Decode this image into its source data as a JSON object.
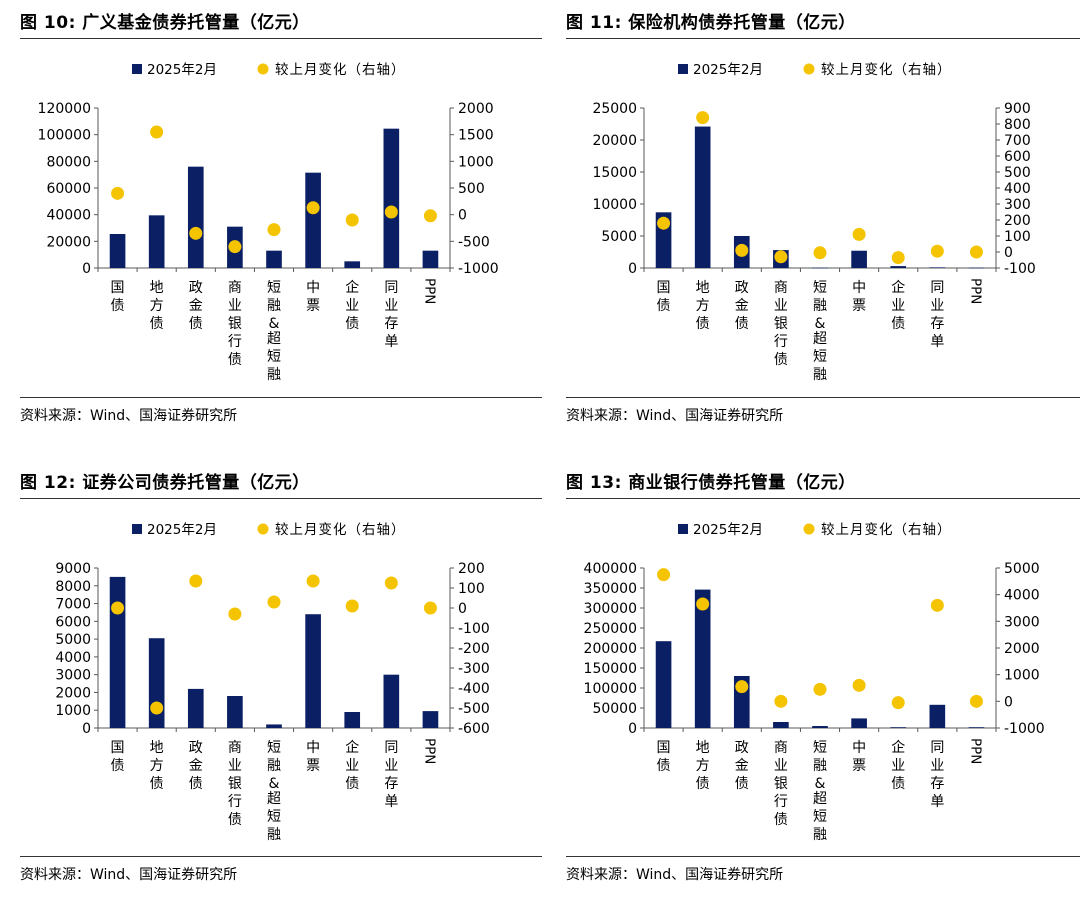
{
  "colors": {
    "bar": "#0b1f64",
    "dot": "#f5c400",
    "axis": "#595959"
  },
  "legend": {
    "bar_label": "2025年2月",
    "dot_label": "较上月变化（右轴）"
  },
  "source_text": "资料来源：Wind、国海证券研究所",
  "charts": [
    {
      "title_label": "图 10:",
      "title_text": "广义基金债券托管量（亿元）",
      "chart_data": {
        "type": "bar+scatter",
        "categories": [
          "国债",
          "地方债",
          "政金债",
          "商业银行债",
          "短融&超短融",
          "中票",
          "企业债",
          "同业存单",
          "PPN"
        ],
        "series": [
          {
            "name": "2025年2月",
            "axis": "left",
            "values": [
              25500,
              39500,
              76000,
              31000,
              13000,
              71500,
              5000,
              104500,
              13000
            ]
          },
          {
            "name": "较上月变化（右轴）",
            "axis": "right",
            "values": [
              400,
              1550,
              -350,
              -600,
              -280,
              130,
              -100,
              50,
              -20
            ]
          }
        ],
        "left_ticks": [
          0,
          20000,
          40000,
          60000,
          80000,
          100000,
          120000
        ],
        "right_ticks": [
          -1000,
          -500,
          0,
          500,
          1000,
          1500,
          2000
        ],
        "ylim": [
          0,
          120000
        ],
        "y2lim": [
          -1000,
          2000
        ]
      }
    },
    {
      "title_label": "图 11:",
      "title_text": "保险机构债券托管量（亿元）",
      "chart_data": {
        "type": "bar+scatter",
        "categories": [
          "国债",
          "地方债",
          "政金债",
          "商业银行债",
          "短融&超短融",
          "中票",
          "企业债",
          "同业存单",
          "PPN"
        ],
        "series": [
          {
            "name": "2025年2月",
            "axis": "left",
            "values": [
              8700,
              22100,
              5000,
              2800,
              50,
              2700,
              300,
              100,
              50
            ]
          },
          {
            "name": "较上月变化（右轴）",
            "axis": "right",
            "values": [
              180,
              840,
              10,
              -30,
              -5,
              110,
              -35,
              5,
              0
            ]
          }
        ],
        "left_ticks": [
          0,
          5000,
          10000,
          15000,
          20000,
          25000
        ],
        "right_ticks": [
          -100,
          0,
          100,
          200,
          300,
          400,
          500,
          600,
          700,
          800,
          900
        ],
        "ylim": [
          0,
          25000
        ],
        "y2lim": [
          -100,
          900
        ]
      }
    },
    {
      "title_label": "图 12:",
      "title_text": "证券公司债券托管量（亿元）",
      "chart_data": {
        "type": "bar+scatter",
        "categories": [
          "国债",
          "地方债",
          "政金债",
          "商业银行债",
          "短融&超短融",
          "中票",
          "企业债",
          "同业存单",
          "PPN"
        ],
        "series": [
          {
            "name": "2025年2月",
            "axis": "left",
            "values": [
              8500,
              5050,
              2200,
              1800,
              200,
              6400,
              900,
              3000,
              950
            ]
          },
          {
            "name": "较上月变化（右轴）",
            "axis": "right",
            "values": [
              0,
              -500,
              135,
              -30,
              30,
              135,
              10,
              125,
              0
            ]
          }
        ],
        "left_ticks": [
          0,
          1000,
          2000,
          3000,
          4000,
          5000,
          6000,
          7000,
          8000,
          9000
        ],
        "right_ticks": [
          -600,
          -500,
          -400,
          -300,
          -200,
          -100,
          0,
          100,
          200
        ],
        "ylim": [
          0,
          9000
        ],
        "y2lim": [
          -600,
          200
        ]
      }
    },
    {
      "title_label": "图 13:",
      "title_text": "商业银行债券托管量（亿元）",
      "chart_data": {
        "type": "bar+scatter",
        "categories": [
          "国债",
          "地方债",
          "政金债",
          "商业银行债",
          "短融&超短融",
          "中票",
          "企业债",
          "同业存单",
          "PPN"
        ],
        "series": [
          {
            "name": "2025年2月",
            "axis": "left",
            "values": [
              217000,
              346000,
              130000,
              15000,
              5000,
              24000,
              2000,
              58000,
              2000
            ]
          },
          {
            "name": "较上月变化（右轴）",
            "axis": "right",
            "values": [
              4750,
              3650,
              550,
              0,
              450,
              600,
              -50,
              3600,
              0
            ]
          }
        ],
        "left_ticks": [
          0,
          50000,
          100000,
          150000,
          200000,
          250000,
          300000,
          350000,
          400000
        ],
        "right_ticks": [
          -1000,
          0,
          1000,
          2000,
          3000,
          4000,
          5000
        ],
        "ylim": [
          0,
          400000
        ],
        "y2lim": [
          -1000,
          5000
        ]
      }
    }
  ]
}
